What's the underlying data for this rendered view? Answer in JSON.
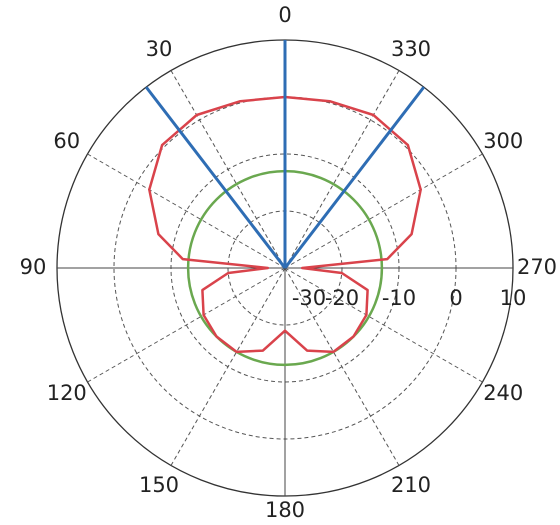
{
  "chart_data": {
    "type": "polar",
    "rlim": [
      -30,
      10
    ],
    "rticks": [
      -30,
      -20,
      -10,
      0,
      10
    ],
    "thetaticks": [
      0,
      30,
      60,
      90,
      120,
      150,
      180,
      210,
      240,
      270,
      300,
      330
    ],
    "series": [
      {
        "color": "#d9434b",
        "theta": [
          0,
          15,
          30,
          45,
          60,
          75,
          85,
          90,
          95,
          105,
          120,
          135,
          150,
          165,
          180,
          195,
          210,
          225,
          240,
          255,
          265,
          270,
          275,
          285,
          300,
          315,
          330,
          345,
          360
        ],
        "values": [
          0,
          0.3,
          1,
          0.5,
          -2.5,
          -7,
          -12,
          -27,
          -20,
          -15,
          -13.5,
          -13,
          -13,
          -15,
          -19,
          -15,
          -13,
          -13,
          -13.5,
          -15,
          -20,
          -27,
          -12,
          -7,
          -2.5,
          0.5,
          1,
          0.3,
          0
        ]
      }
    ],
    "reference_level": {
      "value": -13,
      "color": "#6aa84f"
    },
    "beam_directions": {
      "values": [
        0,
        37.5,
        322.5
      ],
      "color": "#2e6db4"
    }
  }
}
